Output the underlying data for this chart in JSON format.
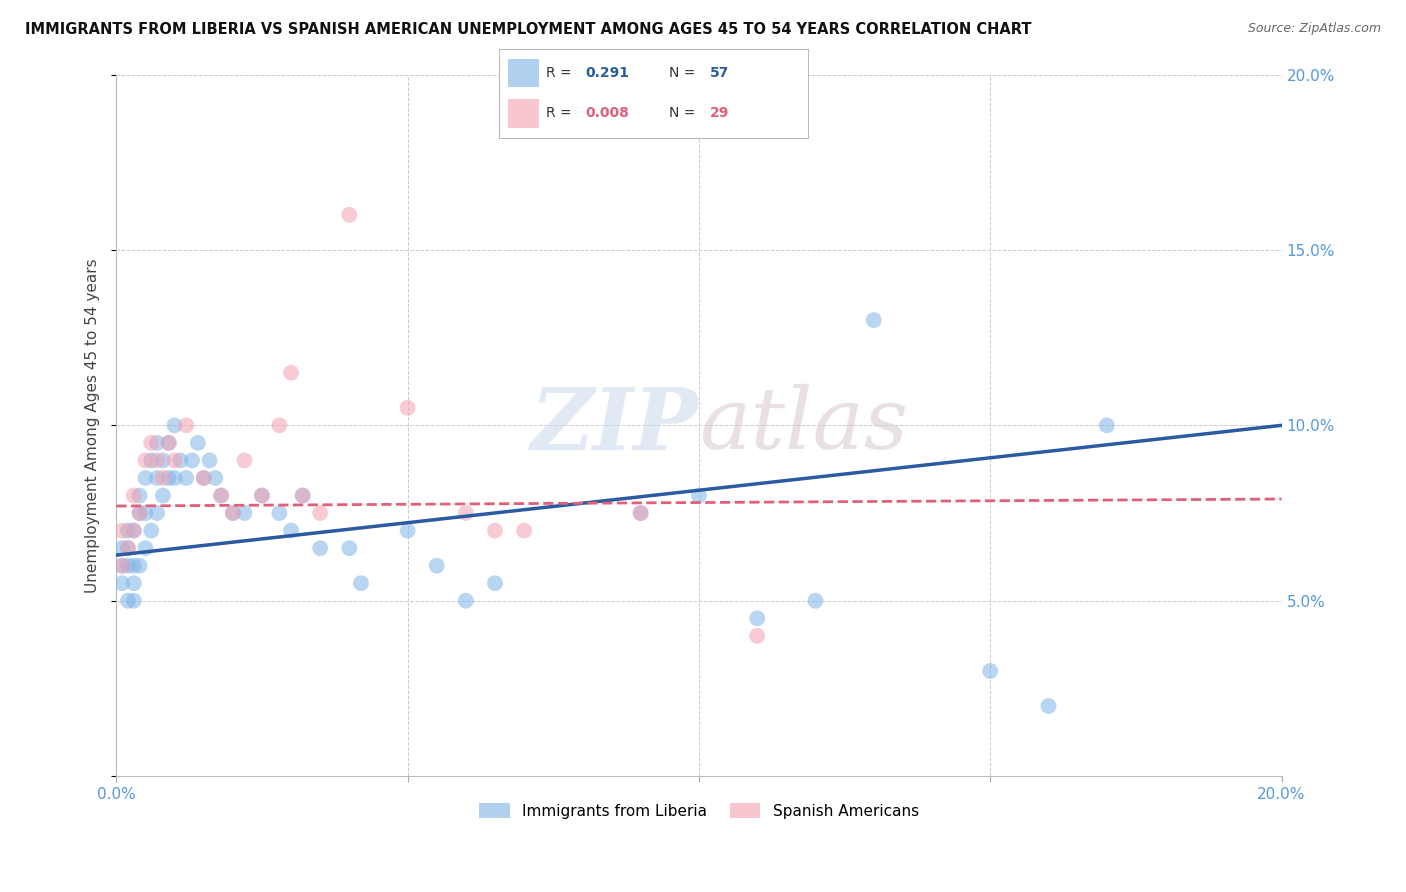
{
  "title": "IMMIGRANTS FROM LIBERIA VS SPANISH AMERICAN UNEMPLOYMENT AMONG AGES 45 TO 54 YEARS CORRELATION CHART",
  "source": "Source: ZipAtlas.com",
  "ylabel": "Unemployment Among Ages 45 to 54 years",
  "xlim": [
    0.0,
    0.2
  ],
  "ylim": [
    0.0,
    0.2
  ],
  "xticks": [
    0.0,
    0.05,
    0.1,
    0.15,
    0.2
  ],
  "yticks": [
    0.0,
    0.05,
    0.1,
    0.15,
    0.2
  ],
  "xticklabels": [
    "0.0%",
    "",
    "",
    "",
    "20.0%"
  ],
  "right_yticklabels": [
    "",
    "5.0%",
    "10.0%",
    "15.0%",
    "20.0%"
  ],
  "blue_R": "0.291",
  "blue_N": "57",
  "pink_R": "0.008",
  "pink_N": "29",
  "blue_color": "#7EB3E8",
  "pink_color": "#F4A0B0",
  "blue_line_color": "#2B5AA0",
  "pink_line_color": "#E0607A",
  "blue_points_x": [
    0.001,
    0.001,
    0.001,
    0.002,
    0.002,
    0.002,
    0.002,
    0.003,
    0.003,
    0.003,
    0.003,
    0.004,
    0.004,
    0.004,
    0.005,
    0.005,
    0.005,
    0.006,
    0.006,
    0.007,
    0.007,
    0.007,
    0.008,
    0.008,
    0.009,
    0.009,
    0.01,
    0.01,
    0.011,
    0.012,
    0.013,
    0.014,
    0.015,
    0.016,
    0.017,
    0.018,
    0.02,
    0.022,
    0.025,
    0.028,
    0.03,
    0.032,
    0.035,
    0.04,
    0.042,
    0.05,
    0.055,
    0.06,
    0.065,
    0.09,
    0.1,
    0.11,
    0.12,
    0.13,
    0.15,
    0.16,
    0.17
  ],
  "blue_points_y": [
    0.055,
    0.06,
    0.065,
    0.05,
    0.06,
    0.065,
    0.07,
    0.05,
    0.055,
    0.06,
    0.07,
    0.06,
    0.075,
    0.08,
    0.065,
    0.075,
    0.085,
    0.07,
    0.09,
    0.075,
    0.085,
    0.095,
    0.08,
    0.09,
    0.085,
    0.095,
    0.085,
    0.1,
    0.09,
    0.085,
    0.09,
    0.095,
    0.085,
    0.09,
    0.085,
    0.08,
    0.075,
    0.075,
    0.08,
    0.075,
    0.07,
    0.08,
    0.065,
    0.065,
    0.055,
    0.07,
    0.06,
    0.05,
    0.055,
    0.075,
    0.08,
    0.045,
    0.05,
    0.13,
    0.03,
    0.02,
    0.1
  ],
  "pink_points_x": [
    0.001,
    0.001,
    0.002,
    0.003,
    0.003,
    0.004,
    0.005,
    0.006,
    0.007,
    0.008,
    0.009,
    0.01,
    0.012,
    0.015,
    0.018,
    0.02,
    0.022,
    0.025,
    0.028,
    0.03,
    0.032,
    0.035,
    0.04,
    0.05,
    0.06,
    0.065,
    0.07,
    0.09,
    0.11
  ],
  "pink_points_y": [
    0.06,
    0.07,
    0.065,
    0.07,
    0.08,
    0.075,
    0.09,
    0.095,
    0.09,
    0.085,
    0.095,
    0.09,
    0.1,
    0.085,
    0.08,
    0.075,
    0.09,
    0.08,
    0.1,
    0.115,
    0.08,
    0.075,
    0.16,
    0.105,
    0.075,
    0.07,
    0.07,
    0.075,
    0.04
  ],
  "blue_trend_y_start": 0.063,
  "blue_trend_y_end": 0.1,
  "pink_trend_y_start": 0.077,
  "pink_trend_y_end": 0.079,
  "legend_label_blue": "Immigrants from Liberia",
  "legend_label_pink": "Spanish Americans",
  "watermark_zip": "ZIP",
  "watermark_atlas": "atlas",
  "background_color": "#FFFFFF",
  "grid_color": "#CCCCCC"
}
